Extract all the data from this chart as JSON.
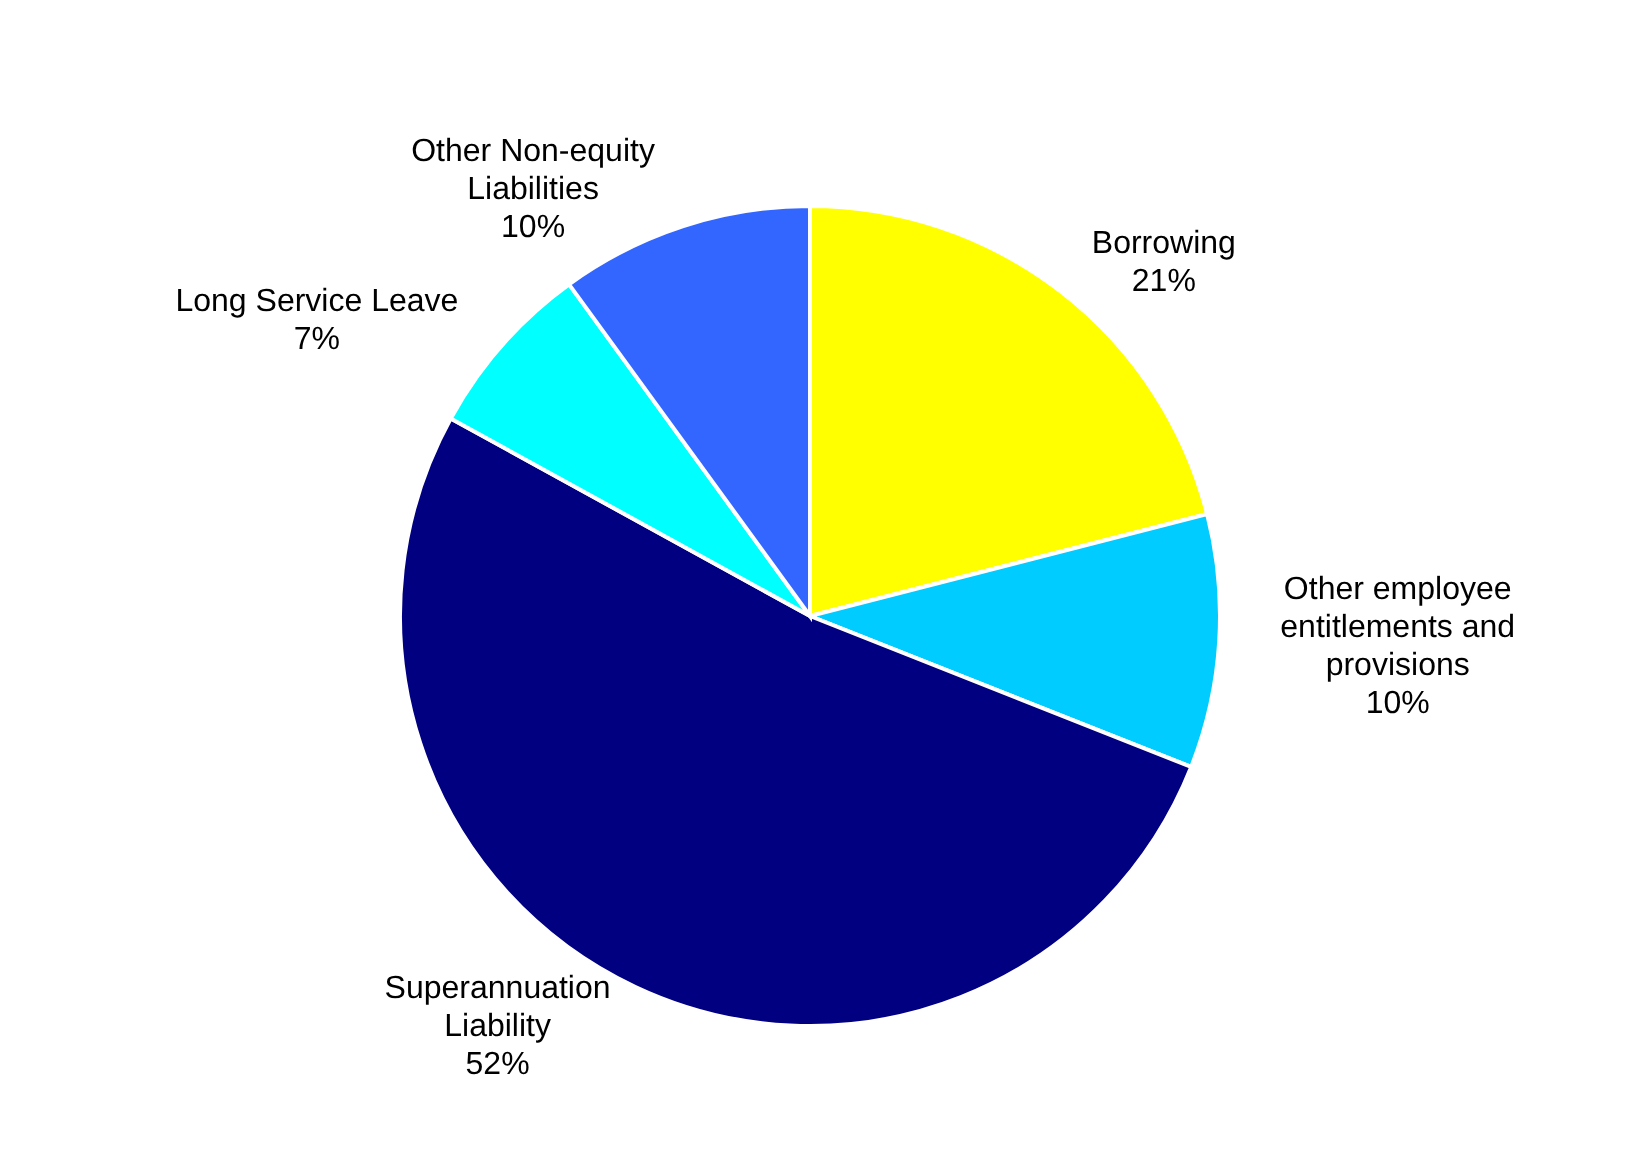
{
  "chart_data": {
    "type": "pie",
    "categories": [
      "Borrowing",
      "Other employee entitlements and provisions",
      "Superannuation Liability",
      "Long Service Leave",
      "Other Non-equity Liabilities"
    ],
    "values": [
      21,
      10,
      52,
      7,
      10
    ],
    "colors": [
      "#ffff00",
      "#00ccff",
      "#000080",
      "#00ffff",
      "#3366ff"
    ],
    "value_labels": [
      "21%",
      "10%",
      "52%",
      "7%",
      "10%"
    ]
  }
}
